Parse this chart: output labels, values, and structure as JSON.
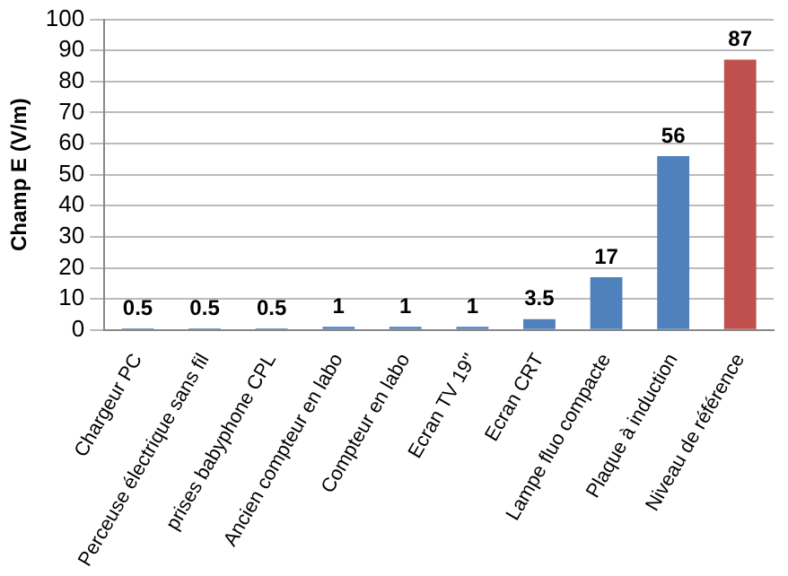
{
  "chart_data": {
    "type": "bar",
    "ylabel": "Champ E (V/m)",
    "categories": [
      "Chargeur PC",
      "Perceuse électrique sans fil",
      "prises babyphone CPL",
      "Ancien compteur en labo",
      "Compteur en labo",
      "Ecran TV 19''",
      "Ecran CRT",
      "Lampe fluo compacte",
      "Plaque à induction",
      "Niveau de référence"
    ],
    "values": [
      0.5,
      0.5,
      0.5,
      1,
      1,
      1,
      3.5,
      17,
      56,
      87
    ],
    "colors": [
      "#4f81bd",
      "#4f81bd",
      "#4f81bd",
      "#4f81bd",
      "#4f81bd",
      "#4f81bd",
      "#4f81bd",
      "#4f81bd",
      "#4f81bd",
      "#c0504d"
    ],
    "ylim": [
      0,
      100
    ],
    "yticks": [
      0,
      10,
      20,
      30,
      40,
      50,
      60,
      70,
      80,
      90,
      100
    ],
    "grid": "y",
    "data_labels": true
  }
}
